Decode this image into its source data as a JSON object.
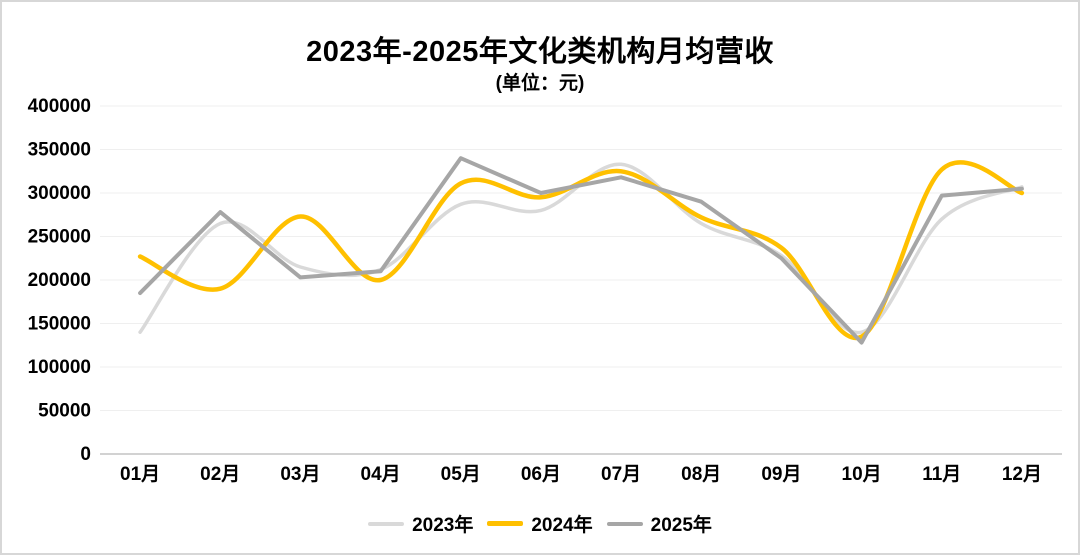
{
  "title": "2023年-2025年文化类机构月均营收",
  "subtitle": "(单位：元)",
  "chart_data": {
    "type": "line",
    "categories": [
      "01月",
      "02月",
      "03月",
      "04月",
      "05月",
      "06月",
      "07月",
      "08月",
      "09月",
      "10月",
      "11月",
      "12月"
    ],
    "series": [
      {
        "name": "2023年",
        "color": "#D9D9D9",
        "smooth": true,
        "values": [
          140000,
          265000,
          215000,
          212000,
          287000,
          280000,
          333000,
          265000,
          228000,
          140000,
          270000,
          307000
        ]
      },
      {
        "name": "2024年",
        "color": "#FFC000",
        "smooth": true,
        "values": [
          227000,
          190000,
          273000,
          200000,
          311000,
          295000,
          325000,
          272000,
          237000,
          135000,
          327000,
          300000
        ]
      },
      {
        "name": "2025年",
        "color": "#A6A6A6",
        "smooth": false,
        "values": [
          185000,
          278000,
          203000,
          210000,
          340000,
          300000,
          318000,
          290000,
          225000,
          128000,
          297000,
          305000
        ]
      }
    ],
    "ylim": [
      0,
      400000
    ],
    "ytick_step": 50000,
    "ytick_labels": [
      "400000",
      "350000",
      "300000",
      "250000",
      "200000",
      "150000",
      "100000",
      "50000",
      "0"
    ],
    "xlabel": "",
    "ylabel": "",
    "grid": true,
    "legend_position": "bottom"
  },
  "colors": {
    "gridline": "#EFEFEF",
    "axis_line": "#C4C4C4",
    "text": "#000000",
    "background": "#FFFFFF",
    "frame_border": "#D7D7D7"
  }
}
